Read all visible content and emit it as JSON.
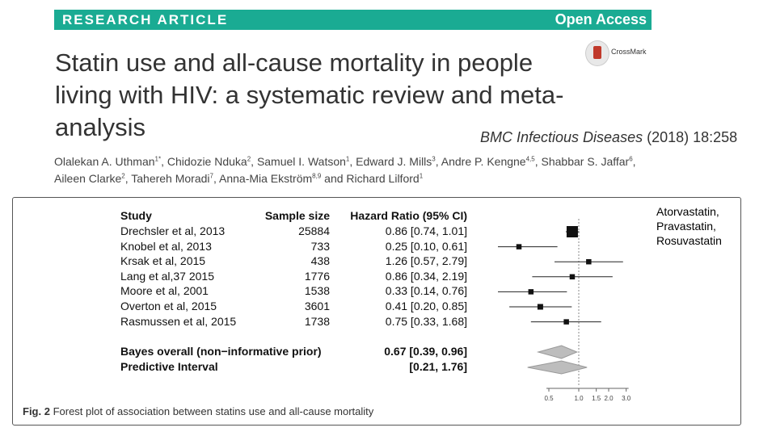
{
  "banner": {
    "type_label": "RESEARCH ARTICLE",
    "access_label": "Open Access"
  },
  "title": "Statin use and all-cause mortality in people living with HIV: a systematic review and meta-analysis",
  "crossmark_label": "CrossMark",
  "journal": {
    "name": "BMC Infectious Diseases",
    "citation": "(2018) 18:258"
  },
  "authors": {
    "line1": [
      {
        "name": "Olalekan A. Uthman",
        "sup": "1*"
      },
      {
        "name": "Chidozie Nduka",
        "sup": "2"
      },
      {
        "name": "Samuel I. Watson",
        "sup": "1"
      },
      {
        "name": "Edward J. Mills",
        "sup": "3"
      },
      {
        "name": "Andre P. Kengne",
        "sup": "4,5"
      },
      {
        "name": "Shabbar S. Jaffar",
        "sup": "6"
      }
    ],
    "line2": [
      {
        "name": "Aileen Clarke",
        "sup": "2"
      },
      {
        "name": "Tahereh Moradi",
        "sup": "7"
      },
      {
        "name": "Anna-Mia Ekström",
        "sup": "8,9"
      },
      {
        "name": "Richard Lilford",
        "sup": "1"
      }
    ],
    "and_word": "and"
  },
  "forest": {
    "headers": {
      "study": "Study",
      "n": "Sample size",
      "hr": "Hazard Ratio (95% CI)"
    },
    "studies": [
      {
        "study": "Drechsler et al, 2013",
        "n": "25884",
        "hr_text": "0.86 [0.74, 1.01]",
        "hr": 0.86,
        "lo": 0.74,
        "hi": 1.01,
        "weight": 1.0
      },
      {
        "study": "Knobel et al, 2013",
        "n": "733",
        "hr_text": "0.25 [0.10, 0.61]",
        "hr": 0.25,
        "lo": 0.1,
        "hi": 0.61,
        "weight": 0.25
      },
      {
        "study": "Krsak et al, 2015",
        "n": "438",
        "hr_text": "1.26 [0.57, 2.79]",
        "hr": 1.26,
        "lo": 0.57,
        "hi": 2.79,
        "weight": 0.25
      },
      {
        "study": "Lang et al,37 2015",
        "n": "1776",
        "hr_text": "0.86 [0.34, 2.19]",
        "hr": 0.86,
        "lo": 0.34,
        "hi": 2.19,
        "weight": 0.25
      },
      {
        "study": "Moore et al, 2001",
        "n": "1538",
        "hr_text": "0.33 [0.14, 0.76]",
        "hr": 0.33,
        "lo": 0.14,
        "hi": 0.76,
        "weight": 0.25
      },
      {
        "study": "Overton et al, 2015",
        "n": "3601",
        "hr_text": "0.41 [0.20, 0.85]",
        "hr": 0.41,
        "lo": 0.2,
        "hi": 0.85,
        "weight": 0.3
      },
      {
        "study": "Rasmussen et al, 2015",
        "n": "1738",
        "hr_text": "0.75 [0.33, 1.68]",
        "hr": 0.75,
        "lo": 0.33,
        "hi": 1.68,
        "weight": 0.25
      }
    ],
    "overall": {
      "label": "Bayes overall (non−informative prior)",
      "hr_text": "0.67 [0.39, 0.96]",
      "hr": 0.67,
      "lo": 0.39,
      "hi": 0.96
    },
    "predictive": {
      "label": "Predictive Interval",
      "hr_text": "[0.21, 1.76]",
      "lo": 0.21,
      "hi": 1.76
    },
    "ticks": [
      "0.5",
      "1.0",
      "1.5",
      "2.0",
      "3.0"
    ],
    "drug_lines": [
      "Atorvastatin,",
      "Pravastatin,",
      "Rosuvastatin"
    ]
  },
  "caption": {
    "fig_label": "Fig. 2",
    "text": "Forest plot of association between statins use and all-cause mortality"
  },
  "colors": {
    "banner": "#1aab93",
    "diamond": "#bdbdbd"
  }
}
